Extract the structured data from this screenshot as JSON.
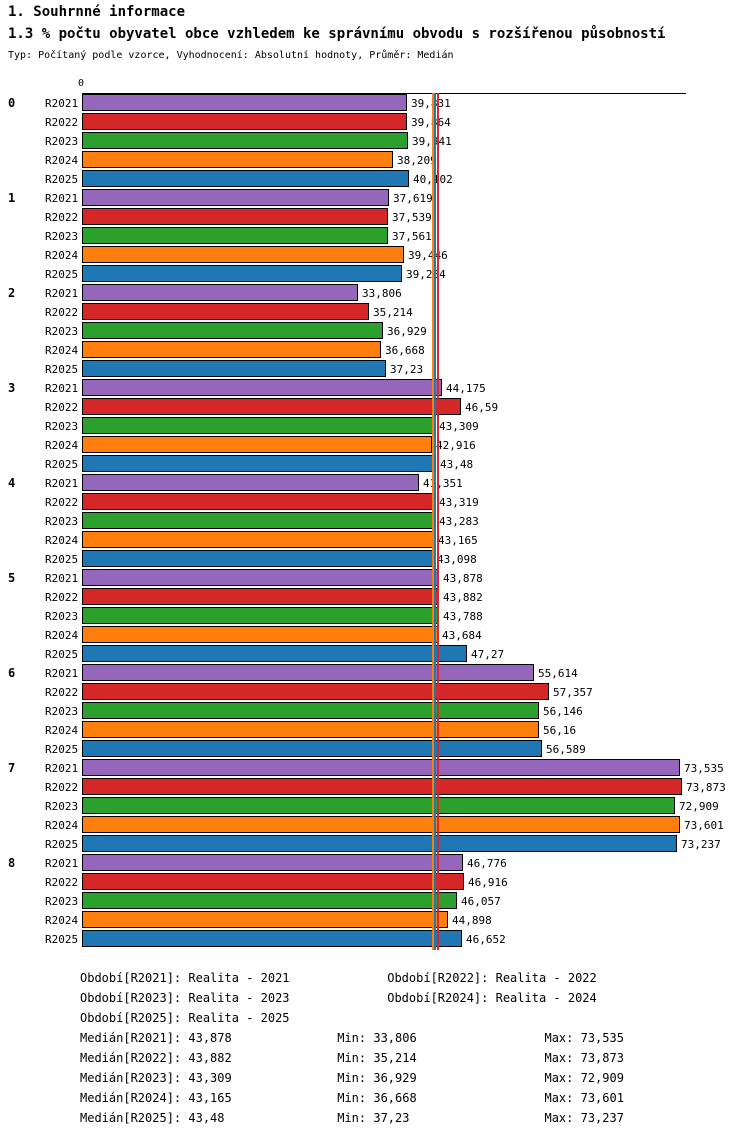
{
  "header": {
    "title": "1. Souhrnné informace",
    "subtitle": "1.3 % počtu obyvatel obce vzhledem ke správnímu obvodu s rozšířenou působností",
    "meta": "Typ: Počítaný podle vzorce, Vyhodnocení: Absolutní hodnoty, Průměr: Medián"
  },
  "chart_data": {
    "type": "bar",
    "orientation": "horizontal",
    "title": "1.3 % počtu obyvatel obce vzhledem ke správnímu obvodu s rozšířenou působností",
    "axis_zero_label": "0",
    "xlim": [
      0,
      74.6
    ],
    "groups": [
      "0",
      "1",
      "2",
      "3",
      "4",
      "5",
      "6",
      "7",
      "8"
    ],
    "series_labels": [
      "R2021",
      "R2022",
      "R2023",
      "R2024",
      "R2025"
    ],
    "series_colors": [
      "#9467bd",
      "#d62728",
      "#2ca02c",
      "#ff7f0e",
      "#1f77b4"
    ],
    "values": [
      [
        39.831,
        39.864,
        39.941,
        38.209,
        40.102
      ],
      [
        37.619,
        37.539,
        37.561,
        39.446,
        39.234
      ],
      [
        33.806,
        35.214,
        36.929,
        36.668,
        37.23
      ],
      [
        44.175,
        46.59,
        43.309,
        42.916,
        43.48
      ],
      [
        41.351,
        43.319,
        43.283,
        43.165,
        43.098
      ],
      [
        43.878,
        43.882,
        43.788,
        43.684,
        47.27
      ],
      [
        55.614,
        57.357,
        56.146,
        56.16,
        56.589
      ],
      [
        73.535,
        73.873,
        72.909,
        73.601,
        73.237
      ],
      [
        46.776,
        46.916,
        46.057,
        44.898,
        46.652
      ]
    ],
    "value_labels": [
      [
        "39,831",
        "39,864",
        "39,941",
        "38,209",
        "40,102"
      ],
      [
        "37,619",
        "37,539",
        "37,561",
        "39,446",
        "39,234"
      ],
      [
        "33,806",
        "35,214",
        "36,929",
        "36,668",
        "37,23"
      ],
      [
        "44,175",
        "46,59",
        "43,309",
        "42,916",
        "43,48"
      ],
      [
        "41,351",
        "43,319",
        "43,283",
        "43,165",
        "43,098"
      ],
      [
        "43,878",
        "43,882",
        "43,788",
        "43,684",
        "47,27"
      ],
      [
        "55,614",
        "57,357",
        "56,146",
        "56,16",
        "56,589"
      ],
      [
        "73,535",
        "73,873",
        "72,909",
        "73,601",
        "73,237"
      ],
      [
        "46,776",
        "46,916",
        "46,057",
        "44,898",
        "46,652"
      ]
    ],
    "medians": [
      43.878,
      43.882,
      43.309,
      43.165,
      43.48
    ],
    "legend_position": "bottom",
    "grid": false
  },
  "legend": {
    "periods": [
      "Období[R2021]: Realita - 2021",
      "Období[R2022]: Realita - 2022",
      "Období[R2023]: Realita - 2023",
      "Období[R2024]: Realita - 2024",
      "Období[R2025]: Realita - 2025"
    ],
    "stats": [
      {
        "median": "Medián[R2021]: 43,878",
        "min": "Min: 33,806",
        "max": "Max: 73,535"
      },
      {
        "median": "Medián[R2022]: 43,882",
        "min": "Min: 35,214",
        "max": "Max: 73,873"
      },
      {
        "median": "Medián[R2023]: 43,309",
        "min": "Min: 36,929",
        "max": "Max: 72,909"
      },
      {
        "median": "Medián[R2024]: 43,165",
        "min": "Min: 36,668",
        "max": "Max: 73,601"
      },
      {
        "median": "Medián[R2025]: 43,48",
        "min": "Min: 37,23",
        "max": "Max: 73,237"
      }
    ]
  }
}
